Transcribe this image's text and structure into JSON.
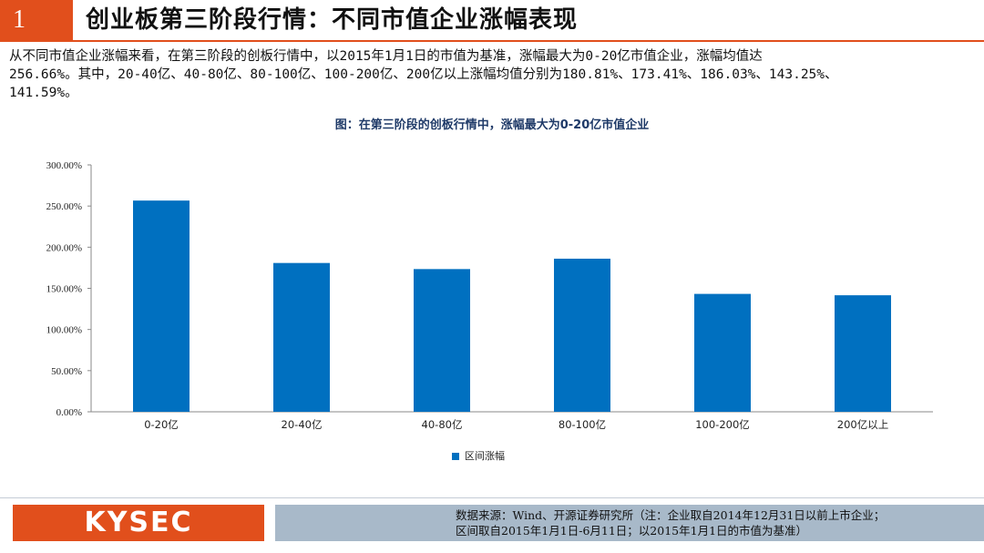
{
  "header": {
    "number": "1",
    "title": "创业板第三阶段行情：不同市值企业涨幅表现"
  },
  "body": {
    "line1": "从不同市值企业涨幅来看，在第三阶段的创板行情中，以2015年1月1日的市值为基准，涨幅最大为0-20亿市值企业，涨幅均值达",
    "line2": "256.66%。其中，20-40亿、40-80亿、80-100亿、100-200亿、200亿以上涨幅均值分别为180.81%、173.41%、186.03%、143.25%、",
    "line3": "141.59%。"
  },
  "chart_data": {
    "type": "bar",
    "title": "图：在第三阶段的创板行情中，涨幅最大为0-20亿市值企业",
    "categories": [
      "0-20亿",
      "20-40亿",
      "40-80亿",
      "80-100亿",
      "100-200亿",
      "200亿以上"
    ],
    "series": [
      {
        "name": "区间涨幅",
        "values": [
          256.66,
          180.81,
          173.41,
          186.03,
          143.25,
          141.59
        ]
      }
    ],
    "yticks": [
      "0.00%",
      "50.00%",
      "100.00%",
      "150.00%",
      "200.00%",
      "250.00%",
      "300.00%"
    ],
    "ylim": [
      0,
      300
    ],
    "legend_position": "bottom",
    "bar_color": "#0070c0"
  },
  "footer": {
    "logo": "KYSEC",
    "source_line1": "数据来源：Wind、开源证券研究所（注：企业取自2014年12月31日以前上市企业；",
    "source_line2": "区间取自2015年1月1日-6月11日；以2015年1月1日的市值为基准）"
  },
  "colors": {
    "accent": "#e14f1c",
    "bar": "#0070c0",
    "source_bg": "#a8b9c9",
    "chart_title": "#1f3a68"
  }
}
